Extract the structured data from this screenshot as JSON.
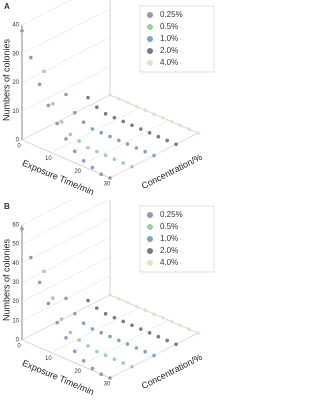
{
  "chart_data": [
    {
      "type": "scatter3d",
      "panel_label": "A",
      "xlabel": "Exposure Time/min",
      "ylabel": "Concentration/%",
      "zlabel": "Numbers of colonies",
      "x": [
        0,
        3,
        6,
        9,
        12,
        15,
        18,
        21,
        24,
        27,
        30
      ],
      "xlim": [
        0,
        30
      ],
      "xticks": [
        0,
        10,
        20,
        30
      ],
      "zlim": [
        0,
        40
      ],
      "zticks": [
        0,
        10,
        20,
        30,
        40
      ],
      "grid": true,
      "legend": "upper right",
      "series": [
        {
          "name": "0.25%",
          "color": "#a190b8",
          "values": [
            38,
            30,
            22,
            16,
            11,
            7,
            4,
            2,
            1,
            0,
            0
          ]
        },
        {
          "name": "0.5%",
          "color": "#9fd19f",
          "values": [
            20,
            10,
            5,
            2,
            1,
            0,
            0,
            0,
            0,
            0,
            0
          ]
        },
        {
          "name": "1.0%",
          "color": "#7fa4cc",
          "values": [
            8,
            3,
            1,
            0,
            0,
            0,
            0,
            0,
            0,
            0,
            0
          ]
        },
        {
          "name": "2.0%",
          "color": "#7a7a7a",
          "values": [
            3,
            1,
            0,
            0,
            0,
            0,
            0,
            0,
            0,
            0,
            0
          ]
        },
        {
          "name": "4.0%",
          "color": "#e4e4c4",
          "values": [
            0,
            0,
            0,
            0,
            0,
            0,
            0,
            0,
            0,
            0,
            0
          ]
        }
      ]
    },
    {
      "type": "scatter3d",
      "panel_label": "B",
      "xlabel": "Exposure Time/min",
      "ylabel": "Concentration/%",
      "zlabel": "Numbers of colonies",
      "x": [
        0,
        3,
        6,
        9,
        12,
        15,
        18,
        21,
        24,
        27,
        30
      ],
      "xlim": [
        0,
        30
      ],
      "xticks": [
        0,
        10,
        20,
        30
      ],
      "zlim": [
        0,
        60
      ],
      "zticks": [
        0,
        10,
        20,
        30,
        40,
        50,
        60
      ],
      "grid": true,
      "legend": "upper right",
      "series": [
        {
          "name": "0.25%",
          "color": "#a190b8",
          "values": [
            58,
            45,
            34,
            25,
            17,
            11,
            6,
            3,
            1,
            0,
            0
          ]
        },
        {
          "name": "0.5%",
          "color": "#9fd19f",
          "values": [
            30,
            18,
            9,
            4,
            2,
            1,
            0,
            0,
            0,
            0,
            0
          ]
        },
        {
          "name": "1.0%",
          "color": "#7fa4cc",
          "values": [
            10,
            4,
            1,
            0,
            0,
            0,
            0,
            0,
            0,
            0,
            0
          ]
        },
        {
          "name": "2.0%",
          "color": "#7a7a7a",
          "values": [
            3,
            1,
            0,
            0,
            0,
            0,
            0,
            0,
            0,
            0,
            0
          ]
        },
        {
          "name": "4.0%",
          "color": "#e4e4c4",
          "values": [
            0,
            0,
            0,
            0,
            0,
            0,
            0,
            0,
            0,
            0,
            0
          ]
        }
      ]
    }
  ]
}
